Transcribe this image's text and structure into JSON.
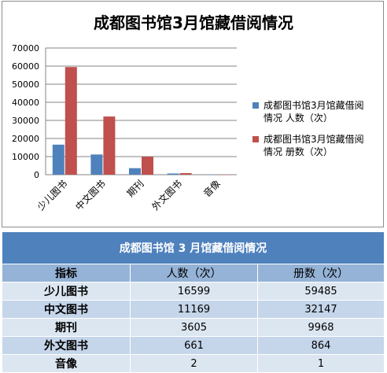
{
  "chart_data": {
    "type": "bar",
    "title": "成都图书馆3月馆藏借阅情况",
    "categories": [
      "少儿图书",
      "中文图书",
      "期刊",
      "外文图书",
      "音像"
    ],
    "series": [
      {
        "name": "成都图书馆3月馆藏借阅情况 人数（次）",
        "values": [
          16599,
          11169,
          3605,
          661,
          2
        ],
        "color": "#4f81bd"
      },
      {
        "name": "成都图书馆3月馆藏借阅情况 册数（次）",
        "values": [
          59485,
          32147,
          9968,
          864,
          1
        ],
        "color": "#c0504d"
      }
    ],
    "yticks": [
      0,
      10000,
      20000,
      30000,
      40000,
      50000,
      60000,
      70000
    ],
    "ylim": [
      0,
      70000
    ],
    "grid": true,
    "legend_position": "right",
    "legend_lines": [
      [
        "成都图书馆3月馆藏借阅",
        "情况 人数（次）"
      ],
      [
        "成都图书馆3月馆藏借阅",
        "情况 册数（次）"
      ]
    ]
  },
  "table": {
    "title": "成都图书馆 3 月馆藏借阅情况",
    "headers": [
      "指标",
      "人数（次）",
      "册数（次）"
    ],
    "rows": [
      [
        "少儿图书",
        "16599",
        "59485"
      ],
      [
        "中文图书",
        "11169",
        "32147"
      ],
      [
        "期刊",
        "3605",
        "9968"
      ],
      [
        "外文图书",
        "661",
        "864"
      ],
      [
        "音像",
        "2",
        "1"
      ]
    ]
  }
}
